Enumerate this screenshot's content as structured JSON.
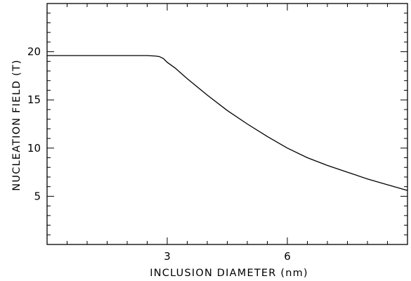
{
  "chart_data": {
    "type": "line",
    "title": "",
    "xlabel": "INCLUSION DIAMETER (nm)",
    "ylabel": "NUCLEATION FIELD (T)",
    "xlim": [
      0,
      9
    ],
    "ylim": [
      0,
      25
    ],
    "x_ticks": [
      3,
      6
    ],
    "y_ticks": [
      5,
      10,
      15,
      20
    ],
    "minor_x_step": 0.5,
    "minor_y_step": 1,
    "grid": false,
    "series": [
      {
        "x": [
          0,
          0.5,
          1,
          1.5,
          2,
          2.5,
          2.7,
          2.8,
          2.9,
          3.0,
          3.2,
          3.5,
          4.0,
          4.5,
          5.0,
          5.5,
          6.0,
          6.5,
          7.0,
          7.5,
          8.0,
          8.5,
          9.0
        ],
        "values": [
          19.6,
          19.6,
          19.6,
          19.6,
          19.6,
          19.6,
          19.55,
          19.5,
          19.3,
          18.9,
          18.3,
          17.2,
          15.5,
          13.9,
          12.5,
          11.2,
          10.0,
          9.0,
          8.2,
          7.5,
          6.8,
          6.2,
          5.6
        ]
      }
    ]
  }
}
